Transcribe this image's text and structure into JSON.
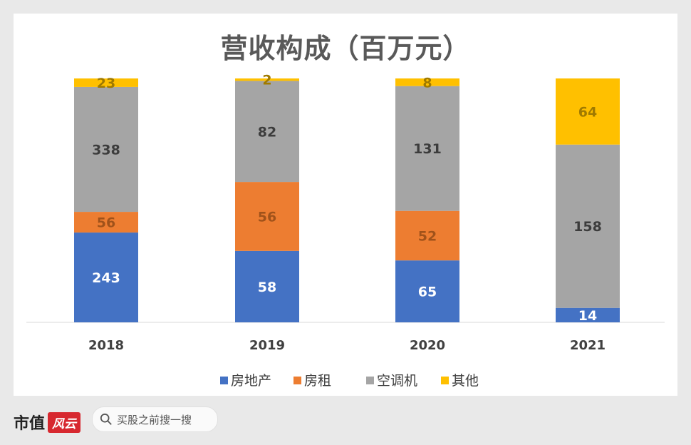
{
  "chart_data": {
    "type": "bar",
    "stacked": true,
    "title": "营收构成（百万元）",
    "categories": [
      "2018",
      "2019",
      "2020",
      "2021"
    ],
    "series": [
      {
        "name": "房地产",
        "color": "#4472c4",
        "label_color": "#ffffff",
        "values": [
          243,
          58,
          65,
          14
        ]
      },
      {
        "name": "房租",
        "color": "#ed7d31",
        "label_color": "#a0521a",
        "values": [
          56,
          56,
          52,
          0
        ]
      },
      {
        "name": "空调机",
        "color": "#a5a5a5",
        "label_color": "#3c3c3c",
        "values": [
          338,
          82,
          131,
          158
        ]
      },
      {
        "name": "其他",
        "color": "#ffc000",
        "label_color": "#a07a00",
        "values": [
          23,
          2,
          8,
          64
        ]
      }
    ],
    "legend_position": "bottom",
    "grid": false,
    "normalized_per_column": true
  },
  "brand": {
    "name": "市值",
    "logo_text": "风云"
  },
  "search": {
    "placeholder": "买股之前搜一搜",
    "icon": "search-icon"
  }
}
